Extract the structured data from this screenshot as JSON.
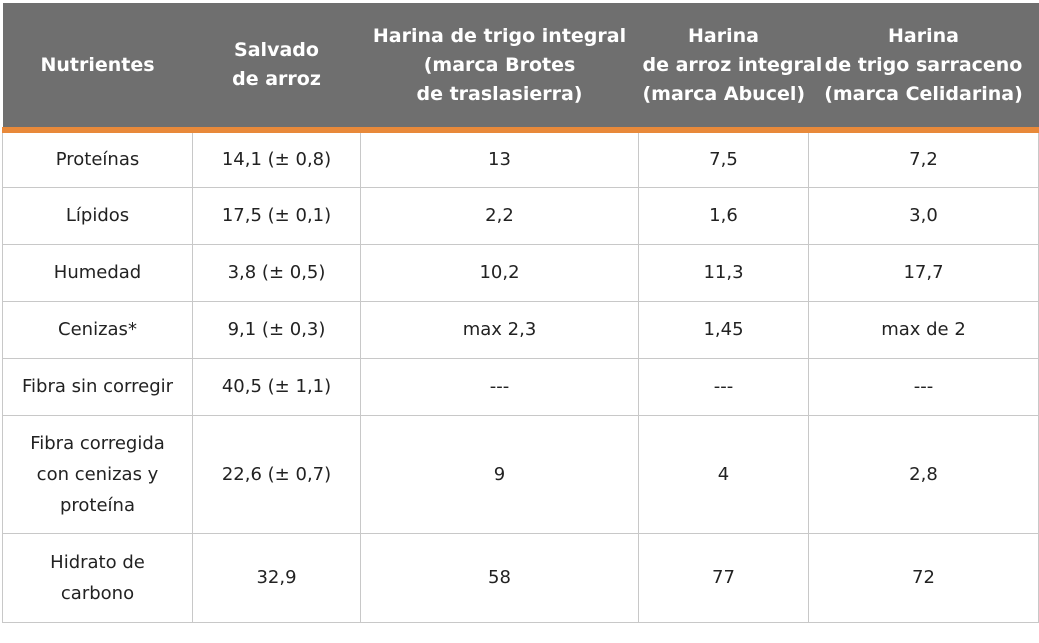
{
  "table": {
    "headers": [
      [
        "Nutrientes"
      ],
      [
        "Salvado",
        "de arroz"
      ],
      [
        "Harina de trigo integral",
        "(marca Brotes",
        "de traslasierra)"
      ],
      [
        "Harina",
        "de arroz integral",
        "(marca Abucel)"
      ],
      [
        "Harina",
        "de trigo sarraceno",
        "(marca Celidarina)"
      ]
    ],
    "rows": [
      [
        [
          "Proteínas"
        ],
        [
          "14,1 (± 0,8)"
        ],
        [
          "13"
        ],
        [
          "7,5"
        ],
        [
          "7,2"
        ]
      ],
      [
        [
          "Lípidos"
        ],
        [
          "17,5 (± 0,1)"
        ],
        [
          "2,2"
        ],
        [
          "1,6"
        ],
        [
          "3,0"
        ]
      ],
      [
        [
          "Humedad"
        ],
        [
          "3,8 (± 0,5)"
        ],
        [
          "10,2"
        ],
        [
          "11,3"
        ],
        [
          "17,7"
        ]
      ],
      [
        [
          "Cenizas*"
        ],
        [
          "9,1 (± 0,3)"
        ],
        [
          "max 2,3"
        ],
        [
          "1,45"
        ],
        [
          "max de 2"
        ]
      ],
      [
        [
          "Fibra sin corregir"
        ],
        [
          "40,5 (± 1,1)"
        ],
        [
          "---"
        ],
        [
          "---"
        ],
        [
          "---"
        ]
      ],
      [
        [
          "Fibra corregida",
          "con cenizas y",
          "proteína"
        ],
        [
          "22,6 (± 0,7)"
        ],
        [
          "9"
        ],
        [
          "4"
        ],
        [
          "2,8"
        ]
      ],
      [
        [
          "Hidrato de",
          "carbono"
        ],
        [
          "32,9"
        ],
        [
          "58"
        ],
        [
          "77"
        ],
        [
          "72"
        ]
      ]
    ],
    "colors": {
      "header_bg": "#6f6f6f",
      "header_text": "#ffffff",
      "accent": "#e8893a",
      "border": "#c8c8c8"
    }
  }
}
